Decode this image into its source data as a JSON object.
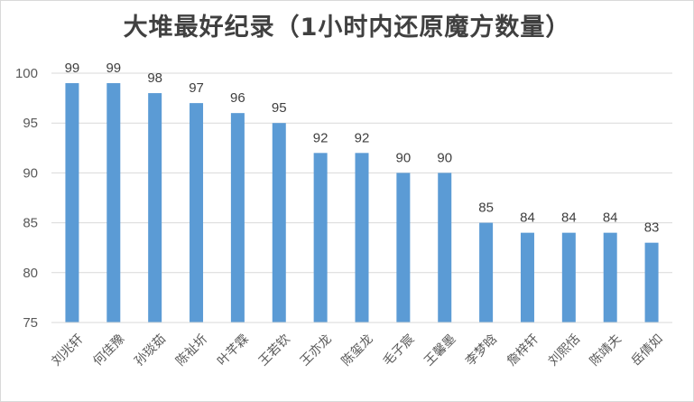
{
  "chart_data": {
    "type": "bar",
    "title": "大堆最好纪录（1小时内还原魔方数量）",
    "categories": [
      "刘兆轩",
      "何佳豫",
      "孙琰茹",
      "陈祉圻",
      "叶芊霖",
      "王若钦",
      "王亦龙",
      "陈玺龙",
      "毛子宸",
      "王馨墨",
      "李梦晗",
      "詹梓轩",
      "刘熙恬",
      "陈靖夫",
      "岳倩如"
    ],
    "values": [
      99,
      99,
      98,
      97,
      96,
      95,
      92,
      92,
      90,
      90,
      85,
      84,
      84,
      84,
      83
    ],
    "ylim": [
      75,
      100
    ],
    "yticks": [
      75,
      80,
      85,
      90,
      95,
      100
    ],
    "grid": true,
    "bar_color": "#5b9bd5",
    "xlabel": "",
    "ylabel": ""
  }
}
